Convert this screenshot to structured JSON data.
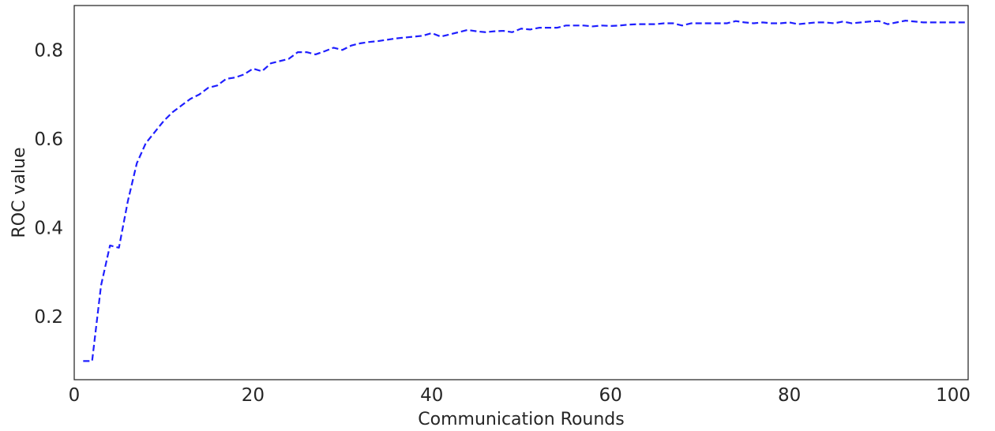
{
  "chart_data": {
    "type": "line",
    "title": "",
    "xlabel": "Communication Rounds",
    "ylabel": "ROC value",
    "xlim": [
      0,
      100
    ],
    "ylim": [
      0.058,
      0.9
    ],
    "x_ticks": [
      0,
      20,
      40,
      60,
      80,
      100
    ],
    "x_tick_labels": [
      "0",
      "20",
      "40",
      "60",
      "80",
      "100"
    ],
    "y_ticks": [
      0.2,
      0.4,
      0.6,
      0.8
    ],
    "y_tick_labels": [
      "0.2",
      "0.4",
      "0.6",
      "0.8"
    ],
    "grid": false,
    "legend": "none",
    "series": [
      {
        "color": "#1f1fff",
        "line_style": "dashed",
        "x": [
          1,
          2,
          3,
          4,
          5,
          6,
          7,
          8,
          9,
          10,
          11,
          12,
          13,
          14,
          15,
          16,
          17,
          18,
          19,
          20,
          21,
          22,
          23,
          24,
          25,
          26,
          27,
          28,
          29,
          30,
          31,
          32,
          33,
          34,
          35,
          36,
          37,
          38,
          39,
          40,
          41,
          42,
          43,
          44,
          45,
          46,
          47,
          48,
          49,
          50,
          51,
          52,
          53,
          54,
          55,
          56,
          57,
          58,
          59,
          60,
          61,
          62,
          63,
          64,
          65,
          66,
          67,
          68,
          69,
          70,
          71,
          72,
          73,
          74,
          75,
          76,
          77,
          78,
          79,
          80,
          81,
          82,
          83,
          84,
          85,
          86,
          87,
          88,
          89,
          90,
          91,
          92,
          93,
          94,
          95,
          96,
          97,
          98,
          99,
          100
        ],
        "values": [
          0.1,
          0.1,
          0.27,
          0.36,
          0.355,
          0.46,
          0.545,
          0.59,
          0.615,
          0.64,
          0.66,
          0.675,
          0.69,
          0.7,
          0.715,
          0.72,
          0.735,
          0.738,
          0.745,
          0.758,
          0.752,
          0.77,
          0.775,
          0.78,
          0.795,
          0.795,
          0.79,
          0.797,
          0.805,
          0.8,
          0.81,
          0.815,
          0.818,
          0.82,
          0.823,
          0.826,
          0.828,
          0.83,
          0.832,
          0.838,
          0.83,
          0.835,
          0.84,
          0.845,
          0.842,
          0.84,
          0.842,
          0.843,
          0.84,
          0.848,
          0.846,
          0.85,
          0.85,
          0.85,
          0.855,
          0.855,
          0.855,
          0.853,
          0.855,
          0.854,
          0.855,
          0.857,
          0.858,
          0.858,
          0.858,
          0.86,
          0.86,
          0.855,
          0.86,
          0.86,
          0.86,
          0.86,
          0.86,
          0.865,
          0.862,
          0.86,
          0.862,
          0.86,
          0.86,
          0.862,
          0.858,
          0.86,
          0.862,
          0.862,
          0.86,
          0.864,
          0.86,
          0.862,
          0.864,
          0.865,
          0.858,
          0.862,
          0.866,
          0.864,
          0.862,
          0.862,
          0.862,
          0.862,
          0.862,
          0.862
        ]
      }
    ]
  }
}
